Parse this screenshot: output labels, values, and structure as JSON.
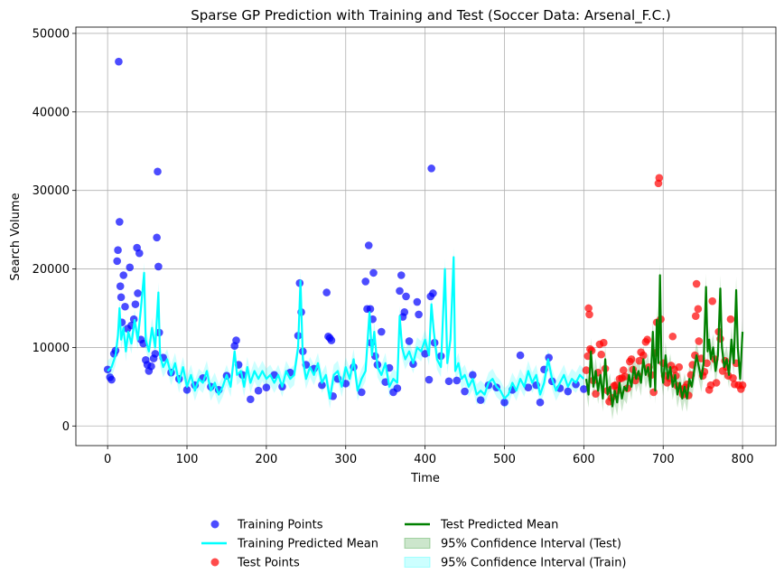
{
  "chart_data": {
    "type": "scatter",
    "title": "Sparse GP Prediction with Training and Test (Soccer Data: Arsenal_F.C.)",
    "xlabel": "Time",
    "ylabel": "Search Volume",
    "xlim": [
      -40,
      842
    ],
    "ylim": [
      -2500,
      50800
    ],
    "xticks": [
      0,
      100,
      200,
      300,
      400,
      500,
      600,
      700,
      800
    ],
    "yticks": [
      0,
      10000,
      20000,
      30000,
      40000,
      50000
    ],
    "grid": true,
    "legend_position": "below-plot",
    "colors": {
      "training_points": "#0000ff",
      "training_mean": "#00ffff",
      "test_points": "#ff0000",
      "test_mean": "#008000",
      "ci_test": "#008000",
      "ci_train": "#00ffff"
    },
    "legend": [
      {
        "key": "training_points",
        "label": "Training Points",
        "kind": "marker"
      },
      {
        "key": "training_mean",
        "label": "Training Predicted Mean",
        "kind": "line"
      },
      {
        "key": "test_points",
        "label": "Test Points",
        "kind": "marker"
      },
      {
        "key": "test_mean",
        "label": "Test Predicted Mean",
        "kind": "line"
      },
      {
        "key": "ci_test",
        "label": "95% Confidence Interval (Test)",
        "kind": "patch"
      },
      {
        "key": "ci_train",
        "label": "95% Confidence Interval (Train)",
        "kind": "patch"
      }
    ],
    "training_points": [
      [
        0,
        7200
      ],
      [
        3,
        6200
      ],
      [
        5,
        5900
      ],
      [
        8,
        9200
      ],
      [
        10,
        9600
      ],
      [
        12,
        21000
      ],
      [
        13,
        22400
      ],
      [
        14,
        46400
      ],
      [
        15,
        26000
      ],
      [
        16,
        17800
      ],
      [
        17,
        16400
      ],
      [
        18,
        13200
      ],
      [
        20,
        19200
      ],
      [
        22,
        15200
      ],
      [
        25,
        12400
      ],
      [
        28,
        20200
      ],
      [
        30,
        12800
      ],
      [
        33,
        13600
      ],
      [
        35,
        15500
      ],
      [
        37,
        22700
      ],
      [
        38,
        16900
      ],
      [
        40,
        22000
      ],
      [
        42,
        11000
      ],
      [
        45,
        10500
      ],
      [
        48,
        8400
      ],
      [
        50,
        7800
      ],
      [
        52,
        7000
      ],
      [
        55,
        7600
      ],
      [
        58,
        8600
      ],
      [
        60,
        9200
      ],
      [
        62,
        24000
      ],
      [
        63,
        32400
      ],
      [
        64,
        20300
      ],
      [
        65,
        11900
      ],
      [
        70,
        8700
      ],
      [
        80,
        6800
      ],
      [
        90,
        6000
      ],
      [
        100,
        4600
      ],
      [
        110,
        5200
      ],
      [
        120,
        6100
      ],
      [
        130,
        5000
      ],
      [
        140,
        4600
      ],
      [
        150,
        6400
      ],
      [
        160,
        10200
      ],
      [
        162,
        10900
      ],
      [
        165,
        7800
      ],
      [
        170,
        6500
      ],
      [
        180,
        3400
      ],
      [
        190,
        4500
      ],
      [
        200,
        4900
      ],
      [
        210,
        6500
      ],
      [
        220,
        5000
      ],
      [
        230,
        6800
      ],
      [
        240,
        11500
      ],
      [
        242,
        18200
      ],
      [
        244,
        14500
      ],
      [
        246,
        9500
      ],
      [
        250,
        7800
      ],
      [
        260,
        7300
      ],
      [
        270,
        5200
      ],
      [
        276,
        17000
      ],
      [
        278,
        11400
      ],
      [
        280,
        11200
      ],
      [
        282,
        10900
      ],
      [
        284,
        3800
      ],
      [
        290,
        6000
      ],
      [
        300,
        5400
      ],
      [
        310,
        7500
      ],
      [
        320,
        4300
      ],
      [
        325,
        18400
      ],
      [
        327,
        14900
      ],
      [
        329,
        23000
      ],
      [
        331,
        14900
      ],
      [
        332,
        10600
      ],
      [
        334,
        13600
      ],
      [
        335,
        19500
      ],
      [
        337,
        8900
      ],
      [
        340,
        7800
      ],
      [
        345,
        12000
      ],
      [
        350,
        5600
      ],
      [
        355,
        7400
      ],
      [
        360,
        4300
      ],
      [
        365,
        4800
      ],
      [
        368,
        17200
      ],
      [
        370,
        19200
      ],
      [
        372,
        13900
      ],
      [
        374,
        14500
      ],
      [
        376,
        16500
      ],
      [
        380,
        10800
      ],
      [
        385,
        7900
      ],
      [
        390,
        15800
      ],
      [
        392,
        14200
      ],
      [
        400,
        9200
      ],
      [
        405,
        5900
      ],
      [
        407,
        16500
      ],
      [
        408,
        32800
      ],
      [
        410,
        16900
      ],
      [
        412,
        10600
      ],
      [
        420,
        8900
      ],
      [
        430,
        5700
      ],
      [
        440,
        5800
      ],
      [
        450,
        4400
      ],
      [
        460,
        6500
      ],
      [
        470,
        3300
      ],
      [
        480,
        5200
      ],
      [
        490,
        4900
      ],
      [
        500,
        3000
      ],
      [
        510,
        4600
      ],
      [
        520,
        9000
      ],
      [
        530,
        4900
      ],
      [
        540,
        5200
      ],
      [
        545,
        3000
      ],
      [
        550,
        7200
      ],
      [
        556,
        8700
      ],
      [
        560,
        5700
      ],
      [
        570,
        4800
      ],
      [
        580,
        4400
      ],
      [
        590,
        5300
      ],
      [
        600,
        4700
      ]
    ],
    "training_mean": [
      [
        0,
        7000
      ],
      [
        5,
        7500
      ],
      [
        10,
        9000
      ],
      [
        13,
        11500
      ],
      [
        15,
        15000
      ],
      [
        17,
        11000
      ],
      [
        20,
        12500
      ],
      [
        23,
        9500
      ],
      [
        26,
        12000
      ],
      [
        30,
        10500
      ],
      [
        34,
        13500
      ],
      [
        38,
        11000
      ],
      [
        42,
        15000
      ],
      [
        46,
        19500
      ],
      [
        48,
        11000
      ],
      [
        52,
        9500
      ],
      [
        56,
        12500
      ],
      [
        60,
        10000
      ],
      [
        64,
        17000
      ],
      [
        66,
        9000
      ],
      [
        70,
        7500
      ],
      [
        75,
        8500
      ],
      [
        80,
        6500
      ],
      [
        85,
        8000
      ],
      [
        90,
        5500
      ],
      [
        95,
        7500
      ],
      [
        100,
        5000
      ],
      [
        105,
        6500
      ],
      [
        110,
        4500
      ],
      [
        115,
        6000
      ],
      [
        120,
        5500
      ],
      [
        125,
        7000
      ],
      [
        130,
        4500
      ],
      [
        135,
        5500
      ],
      [
        140,
        4000
      ],
      [
        145,
        5000
      ],
      [
        150,
        6500
      ],
      [
        155,
        5000
      ],
      [
        160,
        9500
      ],
      [
        163,
        6500
      ],
      [
        168,
        7000
      ],
      [
        172,
        5000
      ],
      [
        176,
        7500
      ],
      [
        180,
        5500
      ],
      [
        185,
        7000
      ],
      [
        190,
        6000
      ],
      [
        195,
        7000
      ],
      [
        200,
        6000
      ],
      [
        205,
        6500
      ],
      [
        210,
        5500
      ],
      [
        215,
        6500
      ],
      [
        220,
        5000
      ],
      [
        225,
        7000
      ],
      [
        230,
        6000
      ],
      [
        235,
        6500
      ],
      [
        240,
        10000
      ],
      [
        243,
        18500
      ],
      [
        246,
        8500
      ],
      [
        250,
        6000
      ],
      [
        255,
        7500
      ],
      [
        260,
        6500
      ],
      [
        265,
        8000
      ],
      [
        270,
        5500
      ],
      [
        275,
        6500
      ],
      [
        280,
        3500
      ],
      [
        285,
        6500
      ],
      [
        290,
        7000
      ],
      [
        295,
        5000
      ],
      [
        300,
        7500
      ],
      [
        305,
        6000
      ],
      [
        310,
        8500
      ],
      [
        315,
        4500
      ],
      [
        320,
        6000
      ],
      [
        325,
        7000
      ],
      [
        330,
        14500
      ],
      [
        333,
        9000
      ],
      [
        336,
        12000
      ],
      [
        340,
        7500
      ],
      [
        345,
        6500
      ],
      [
        350,
        8000
      ],
      [
        355,
        5000
      ],
      [
        360,
        6000
      ],
      [
        365,
        5500
      ],
      [
        368,
        14000
      ],
      [
        371,
        10000
      ],
      [
        375,
        8500
      ],
      [
        380,
        9500
      ],
      [
        385,
        8000
      ],
      [
        390,
        10000
      ],
      [
        395,
        9500
      ],
      [
        400,
        11000
      ],
      [
        405,
        9000
      ],
      [
        408,
        15500
      ],
      [
        411,
        12000
      ],
      [
        415,
        8500
      ],
      [
        420,
        7500
      ],
      [
        425,
        20000
      ],
      [
        428,
        8000
      ],
      [
        432,
        11000
      ],
      [
        436,
        21500
      ],
      [
        438,
        7000
      ],
      [
        442,
        8000
      ],
      [
        446,
        6000
      ],
      [
        450,
        6500
      ],
      [
        455,
        5000
      ],
      [
        460,
        6000
      ],
      [
        465,
        4000
      ],
      [
        470,
        4500
      ],
      [
        475,
        4000
      ],
      [
        480,
        5500
      ],
      [
        485,
        6000
      ],
      [
        490,
        5000
      ],
      [
        495,
        4500
      ],
      [
        500,
        3500
      ],
      [
        505,
        4000
      ],
      [
        510,
        5500
      ],
      [
        515,
        4500
      ],
      [
        520,
        6000
      ],
      [
        525,
        5000
      ],
      [
        530,
        7000
      ],
      [
        535,
        5500
      ],
      [
        540,
        6500
      ],
      [
        545,
        4000
      ],
      [
        550,
        5500
      ],
      [
        555,
        8500
      ],
      [
        560,
        6000
      ],
      [
        565,
        4500
      ],
      [
        570,
        5500
      ],
      [
        575,
        6500
      ],
      [
        580,
        5000
      ],
      [
        585,
        6000
      ],
      [
        590,
        5500
      ],
      [
        595,
        6500
      ],
      [
        600,
        6000
      ]
    ],
    "ci_train_halfwidth": 1300,
    "test_points": [
      [
        603,
        7100
      ],
      [
        605,
        8900
      ],
      [
        606,
        15000
      ],
      [
        607,
        14200
      ],
      [
        608,
        9800
      ],
      [
        610,
        9600
      ],
      [
        612,
        5800
      ],
      [
        615,
        4100
      ],
      [
        618,
        6800
      ],
      [
        620,
        10400
      ],
      [
        622,
        9100
      ],
      [
        625,
        10600
      ],
      [
        627,
        7300
      ],
      [
        630,
        4500
      ],
      [
        632,
        3100
      ],
      [
        635,
        3600
      ],
      [
        638,
        5100
      ],
      [
        640,
        5200
      ],
      [
        642,
        4500
      ],
      [
        645,
        6000
      ],
      [
        648,
        6100
      ],
      [
        650,
        7100
      ],
      [
        652,
        6300
      ],
      [
        655,
        4800
      ],
      [
        658,
        8200
      ],
      [
        660,
        8500
      ],
      [
        662,
        7200
      ],
      [
        665,
        5800
      ],
      [
        668,
        6400
      ],
      [
        670,
        8300
      ],
      [
        672,
        9400
      ],
      [
        675,
        9000
      ],
      [
        678,
        10700
      ],
      [
        680,
        11000
      ],
      [
        682,
        7500
      ],
      [
        685,
        6500
      ],
      [
        688,
        4300
      ],
      [
        690,
        9300
      ],
      [
        692,
        13200
      ],
      [
        694,
        30900
      ],
      [
        695,
        31600
      ],
      [
        697,
        13600
      ],
      [
        700,
        8000
      ],
      [
        702,
        6400
      ],
      [
        705,
        5500
      ],
      [
        708,
        6100
      ],
      [
        710,
        7700
      ],
      [
        712,
        11400
      ],
      [
        714,
        7200
      ],
      [
        716,
        6400
      ],
      [
        718,
        5100
      ],
      [
        720,
        7500
      ],
      [
        722,
        4700
      ],
      [
        725,
        4000
      ],
      [
        728,
        4900
      ],
      [
        730,
        5300
      ],
      [
        732,
        3900
      ],
      [
        735,
        6500
      ],
      [
        737,
        7800
      ],
      [
        740,
        9000
      ],
      [
        741,
        14000
      ],
      [
        742,
        18100
      ],
      [
        744,
        14900
      ],
      [
        745,
        10800
      ],
      [
        748,
        8600
      ],
      [
        750,
        6400
      ],
      [
        752,
        6900
      ],
      [
        755,
        8000
      ],
      [
        758,
        4600
      ],
      [
        760,
        5200
      ],
      [
        762,
        15900
      ],
      [
        765,
        8500
      ],
      [
        767,
        5500
      ],
      [
        770,
        12000
      ],
      [
        772,
        11100
      ],
      [
        775,
        7000
      ],
      [
        778,
        8300
      ],
      [
        780,
        7500
      ],
      [
        782,
        6400
      ],
      [
        785,
        13600
      ],
      [
        788,
        6100
      ],
      [
        790,
        5300
      ],
      [
        792,
        8000
      ],
      [
        795,
        5200
      ],
      [
        798,
        4700
      ],
      [
        800,
        5200
      ]
    ],
    "test_mean": [
      [
        603,
        6000
      ],
      [
        606,
        4000
      ],
      [
        609,
        9500
      ],
      [
        612,
        5000
      ],
      [
        615,
        7000
      ],
      [
        618,
        4500
      ],
      [
        621,
        6500
      ],
      [
        624,
        3500
      ],
      [
        627,
        8500
      ],
      [
        630,
        4000
      ],
      [
        633,
        5000
      ],
      [
        636,
        2500
      ],
      [
        639,
        4500
      ],
      [
        642,
        3000
      ],
      [
        645,
        5500
      ],
      [
        648,
        3500
      ],
      [
        651,
        5000
      ],
      [
        654,
        4500
      ],
      [
        657,
        6500
      ],
      [
        660,
        5000
      ],
      [
        663,
        7500
      ],
      [
        666,
        6000
      ],
      [
        669,
        7000
      ],
      [
        672,
        5500
      ],
      [
        675,
        8500
      ],
      [
        678,
        6500
      ],
      [
        681,
        7500
      ],
      [
        684,
        5000
      ],
      [
        687,
        12000
      ],
      [
        690,
        4500
      ],
      [
        692,
        13500
      ],
      [
        694,
        8000
      ],
      [
        696,
        19200
      ],
      [
        698,
        7000
      ],
      [
        700,
        5500
      ],
      [
        703,
        9000
      ],
      [
        706,
        6000
      ],
      [
        709,
        7500
      ],
      [
        712,
        5000
      ],
      [
        715,
        6500
      ],
      [
        718,
        4000
      ],
      [
        721,
        5500
      ],
      [
        724,
        3500
      ],
      [
        727,
        5000
      ],
      [
        730,
        3500
      ],
      [
        733,
        6000
      ],
      [
        736,
        5000
      ],
      [
        739,
        7000
      ],
      [
        742,
        9000
      ],
      [
        745,
        7500
      ],
      [
        748,
        6000
      ],
      [
        751,
        8000
      ],
      [
        754,
        17700
      ],
      [
        756,
        9500
      ],
      [
        758,
        11000
      ],
      [
        760,
        8500
      ],
      [
        763,
        10000
      ],
      [
        766,
        7000
      ],
      [
        769,
        9000
      ],
      [
        772,
        17500
      ],
      [
        774,
        10000
      ],
      [
        777,
        7500
      ],
      [
        780,
        8500
      ],
      [
        783,
        6500
      ],
      [
        786,
        11000
      ],
      [
        789,
        8000
      ],
      [
        792,
        17300
      ],
      [
        794,
        10000
      ],
      [
        797,
        6000
      ],
      [
        800,
        12000
      ]
    ],
    "ci_test_halfwidth": 1700
  }
}
